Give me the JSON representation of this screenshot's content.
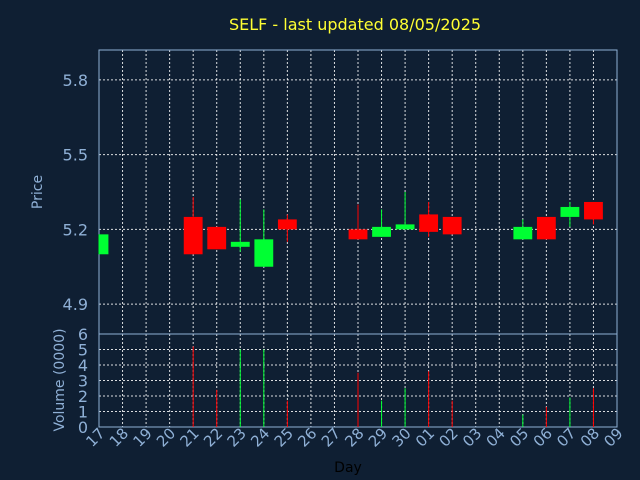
{
  "chart_data": {
    "type": "candlestick",
    "title": "SELF - last updated 08/05/2025",
    "xlabel": "Day",
    "price_panel": {
      "ylabel": "Price",
      "ylim": [
        4.78,
        5.92
      ],
      "yticks": [
        "4.9",
        "5.2",
        "5.5",
        "5.8"
      ],
      "grid": true
    },
    "volume_panel": {
      "ylabel": "Volume (0000)",
      "ylim": [
        0,
        6
      ],
      "yticks": [
        "0",
        "1",
        "2",
        "3",
        "4",
        "5",
        "6"
      ],
      "grid": true
    },
    "x_ticks": [
      "17",
      "18",
      "19",
      "20",
      "21",
      "22",
      "23",
      "24",
      "25",
      "26",
      "27",
      "28",
      "29",
      "30",
      "01",
      "02",
      "03",
      "04",
      "05",
      "06",
      "07",
      "08",
      "09"
    ],
    "colors": {
      "up": "#00ff33",
      "down": "#ff0000"
    },
    "candles": [
      {
        "day": "17",
        "open": 5.1,
        "close": 5.18,
        "high": 5.18,
        "low": 5.1,
        "volume": 0.0
      },
      {
        "day": "21",
        "open": 5.25,
        "close": 5.1,
        "high": 5.33,
        "low": 5.1,
        "volume": 5.2
      },
      {
        "day": "22",
        "open": 5.21,
        "close": 5.12,
        "high": 5.21,
        "low": 5.12,
        "volume": 2.4
      },
      {
        "day": "23",
        "open": 5.13,
        "close": 5.15,
        "high": 5.32,
        "low": 5.11,
        "volume": 5.0
      },
      {
        "day": "24",
        "open": 5.05,
        "close": 5.16,
        "high": 5.28,
        "low": 5.05,
        "volume": 5.0
      },
      {
        "day": "25",
        "open": 5.24,
        "close": 5.2,
        "high": 5.26,
        "low": 5.15,
        "volume": 1.7
      },
      {
        "day": "28",
        "open": 5.2,
        "close": 5.16,
        "high": 5.3,
        "low": 5.16,
        "volume": 3.5
      },
      {
        "day": "29",
        "open": 5.17,
        "close": 5.21,
        "high": 5.28,
        "low": 5.17,
        "volume": 1.7
      },
      {
        "day": "30",
        "open": 5.2,
        "close": 5.22,
        "high": 5.35,
        "low": 5.2,
        "volume": 2.5
      },
      {
        "day": "01",
        "open": 5.26,
        "close": 5.19,
        "high": 5.31,
        "low": 5.17,
        "volume": 3.6
      },
      {
        "day": "02",
        "open": 5.25,
        "close": 5.18,
        "high": 5.25,
        "low": 5.18,
        "volume": 1.7
      },
      {
        "day": "05",
        "open": 5.16,
        "close": 5.21,
        "high": 5.24,
        "low": 5.16,
        "volume": 0.8
      },
      {
        "day": "06",
        "open": 5.25,
        "close": 5.16,
        "high": 5.25,
        "low": 5.16,
        "volume": 1.3
      },
      {
        "day": "07",
        "open": 5.25,
        "close": 5.29,
        "high": 5.31,
        "low": 5.21,
        "volume": 1.9
      },
      {
        "day": "08",
        "open": 5.31,
        "close": 5.24,
        "high": 5.31,
        "low": 5.22,
        "volume": 2.5
      }
    ]
  }
}
